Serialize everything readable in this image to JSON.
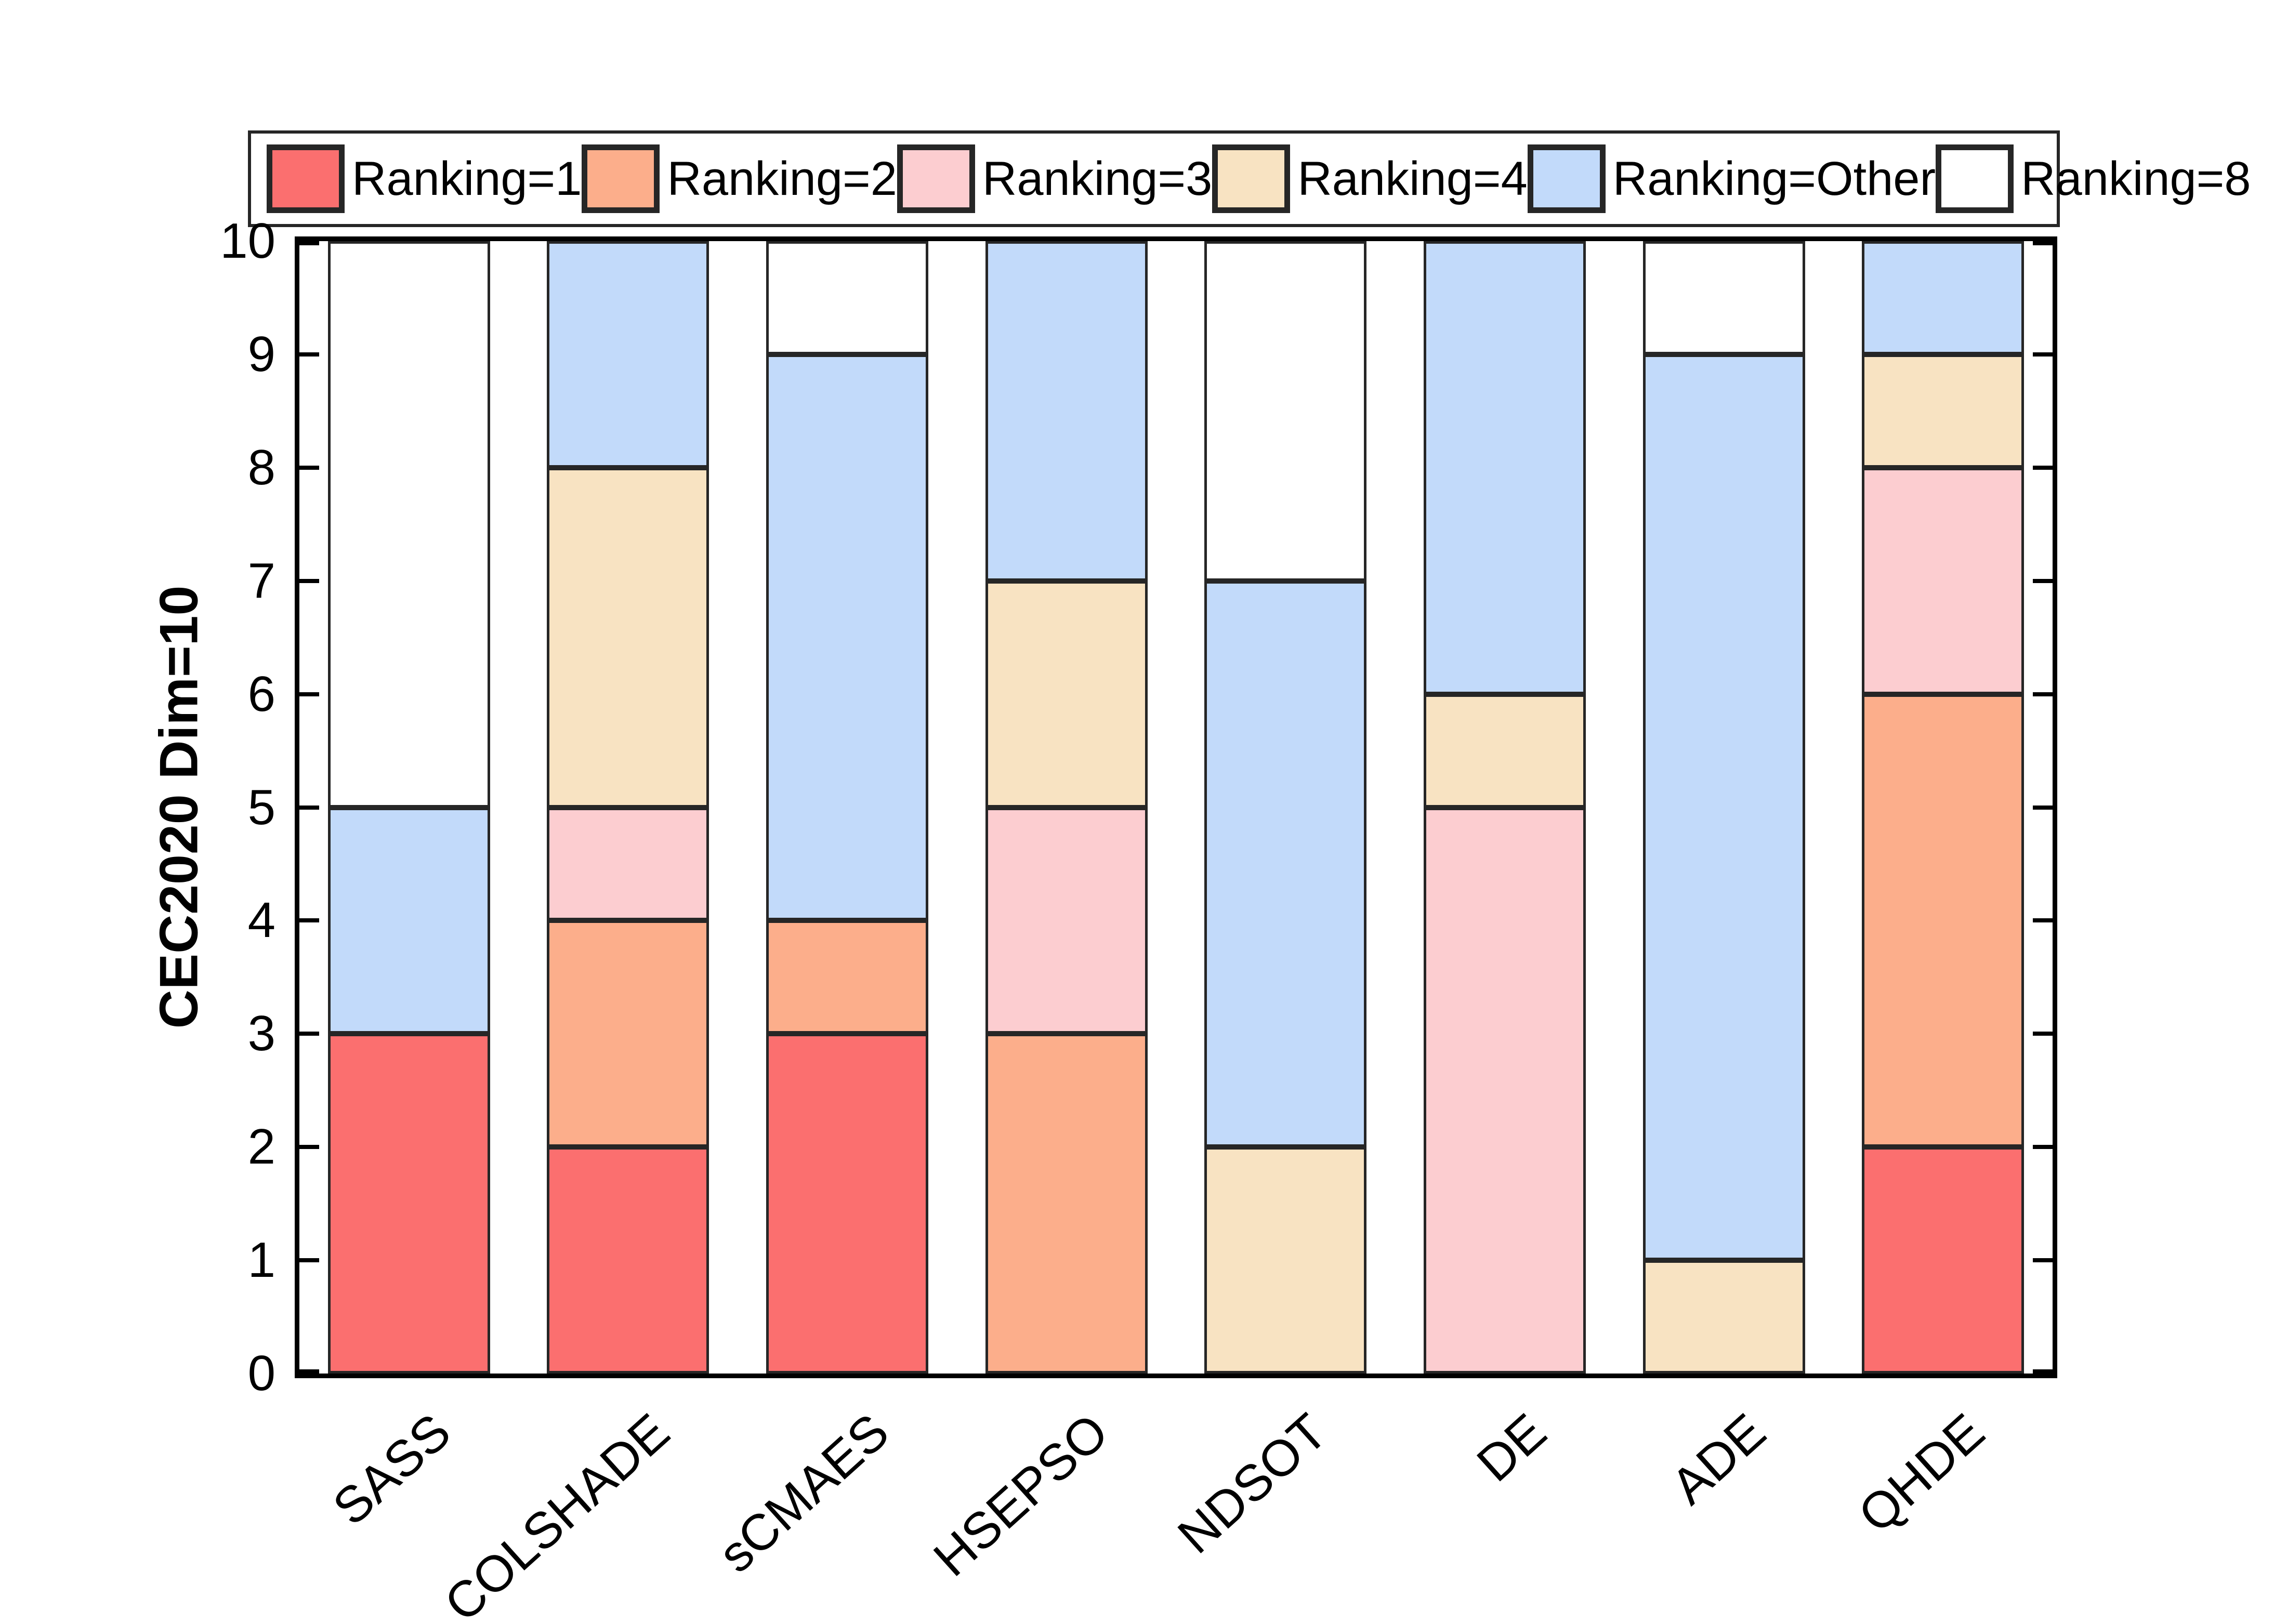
{
  "figure": {
    "ylabel": "CEC2020 Dim=10"
  },
  "chart_data": {
    "type": "bar",
    "stacked": true,
    "orientation": "vertical",
    "categories": [
      "SASS",
      "COLSHADE",
      "sCMAES",
      "HSEPSO",
      "NDSOT",
      "DE",
      "ADE",
      "QHDE"
    ],
    "series": [
      {
        "name": "Ranking=1",
        "color": "#FB6F6F",
        "values": [
          3,
          2,
          3,
          0,
          0,
          0,
          0,
          2
        ]
      },
      {
        "name": "Ranking=2",
        "color": "#FCAE8B",
        "values": [
          0,
          2,
          1,
          3,
          0,
          0,
          0,
          4
        ]
      },
      {
        "name": "Ranking=3",
        "color": "#FCCDD0",
        "values": [
          0,
          1,
          0,
          2,
          0,
          5,
          0,
          2
        ]
      },
      {
        "name": "Ranking=4",
        "color": "#F8E3C2",
        "values": [
          0,
          3,
          0,
          2,
          2,
          1,
          1,
          1
        ]
      },
      {
        "name": "Ranking=Other",
        "color": "#C2DAFA",
        "values": [
          2,
          2,
          5,
          3,
          5,
          4,
          8,
          1
        ]
      },
      {
        "name": "Ranking=8",
        "color": "#FFFFFF",
        "values": [
          5,
          0,
          1,
          0,
          3,
          0,
          1,
          0
        ]
      }
    ],
    "title": "",
    "xlabel": "",
    "ylabel": "CEC2020 Dim=10",
    "ylim": [
      0,
      10
    ],
    "yticks": [
      0,
      1,
      2,
      3,
      4,
      5,
      6,
      7,
      8,
      9,
      10
    ],
    "grid": false,
    "legend_position": "top",
    "bar_edge_color": "#262626",
    "axis_color": "#000000"
  }
}
